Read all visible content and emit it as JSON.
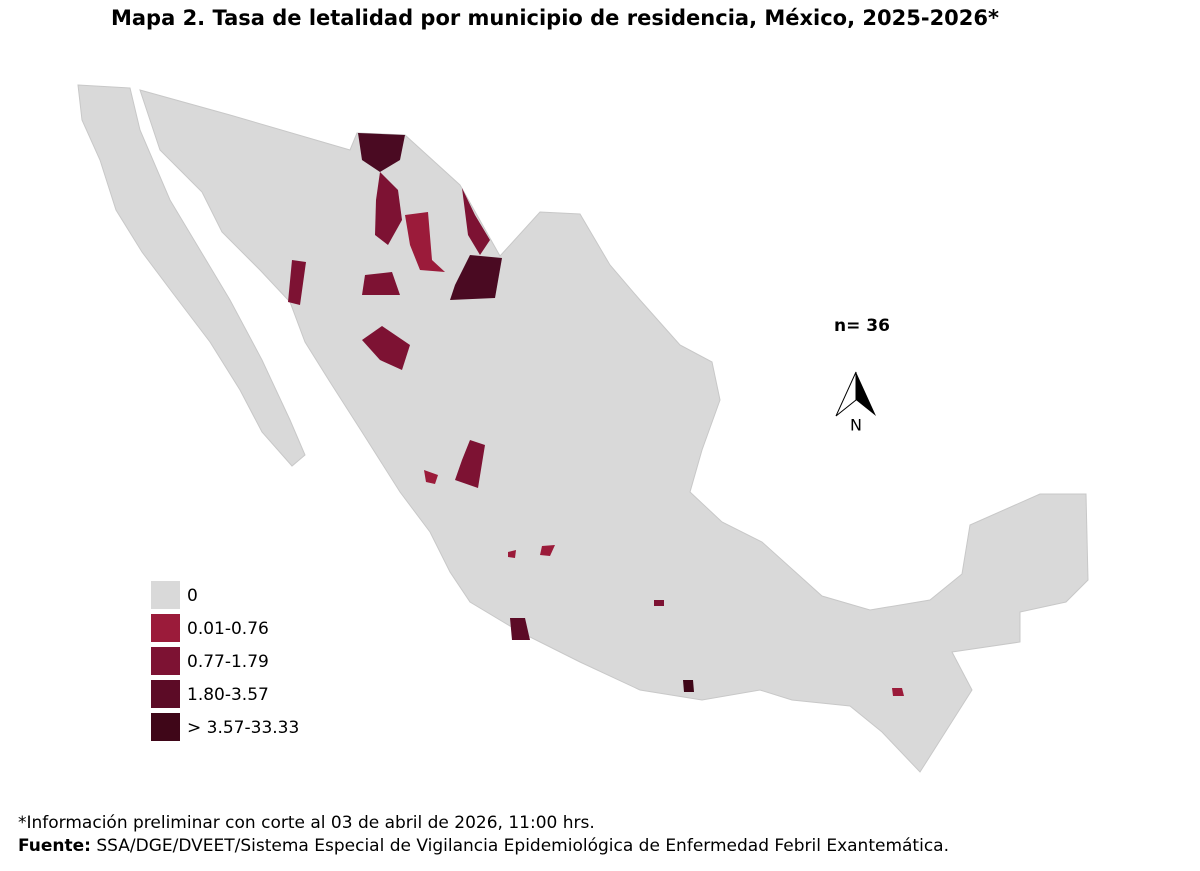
{
  "title": "Mapa 2. Tasa de letalidad por municipio de residencia, México, 2025-2026*",
  "n_label": "n= 36",
  "north_label": "N",
  "legend": [
    {
      "label": "0",
      "color": "#d9d9d9"
    },
    {
      "label": "0.01-0.76",
      "color": "#9b1b3a"
    },
    {
      "label": "0.77-1.79",
      "color": "#7d1233"
    },
    {
      "label": "1.80-3.57",
      "color": "#5c0b26"
    },
    {
      "label": "> 3.57-33.33",
      "color": "#3f0618"
    }
  ],
  "footnote": "*Información preliminar con corte al 03 de abril de 2026, 11:00 hrs.",
  "source_label": "Fuente:",
  "source_text": "SSA/DGE/DVEET/Sistema Especial de Vigilancia Epidemiológica de Enfermedad Febril Exantemática."
}
